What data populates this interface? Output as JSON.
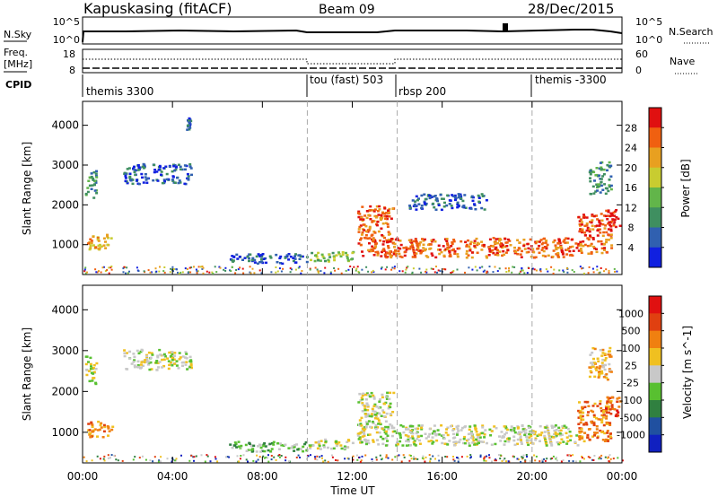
{
  "header": {
    "station": "Kapuskasing (fitACF)",
    "beam": "Beam 09",
    "date": "28/Dec/2015"
  },
  "top_panels": {
    "nsky_label": "N.Sky",
    "nsky_ticks": [
      "10^5",
      "10^0"
    ],
    "nsearch_label": "N.Search",
    "nsearch_ticks": [
      "10^5",
      "10^0"
    ],
    "freq_label_1": "Freq.",
    "freq_label_2": "[MHz]",
    "freq_ticks": [
      "18",
      "8"
    ],
    "nave_label": "Nave",
    "nave_ticks": [
      "60",
      "0"
    ],
    "cpid_label": "CPID",
    "cpid_segments": [
      {
        "label": "themis 3300",
        "start_hour": 0
      },
      {
        "label": "tou (fast) 503",
        "start_hour": 10
      },
      {
        "label": "rbsp 200",
        "start_hour": 14
      },
      {
        "label": "themis -3300",
        "start_hour": 20
      }
    ]
  },
  "chart_data": [
    {
      "type": "heatmap",
      "ylabel": "Slant Range [km]",
      "xlabel": "",
      "xlim": [
        0,
        24
      ],
      "ylim": [
        250,
        4600
      ],
      "y_ticks": [
        1000,
        2000,
        3000,
        4000
      ],
      "x_ticks": [
        0,
        4,
        8,
        12,
        16,
        20,
        24
      ],
      "mode_change_hours": [
        10,
        14,
        20
      ],
      "colorbar": {
        "label": "Power [dB]",
        "ticks": [
          "4",
          "8",
          "12",
          "16",
          "20",
          "24",
          "28"
        ],
        "colors": [
          "#1020e0",
          "#3060b0",
          "#3f8f60",
          "#62b54a",
          "#c8cc30",
          "#e8a020",
          "#f06010",
          "#e01010"
        ]
      },
      "regions": [
        {
          "t0": 0.2,
          "t1": 1.3,
          "r0": 900,
          "r1": 1300,
          "level": 5
        },
        {
          "t0": 0.1,
          "t1": 0.6,
          "r0": 2200,
          "r1": 2900,
          "level": 2
        },
        {
          "t0": 1.8,
          "t1": 4.8,
          "r0": 2550,
          "r1": 3050,
          "level": 1
        },
        {
          "t0": 4.6,
          "t1": 4.8,
          "r0": 3900,
          "r1": 4200,
          "level": 1
        },
        {
          "t0": 6.5,
          "t1": 10.0,
          "r0": 550,
          "r1": 800,
          "level": 1
        },
        {
          "t0": 10.0,
          "t1": 12.0,
          "r0": 600,
          "r1": 850,
          "level": 3
        },
        {
          "t0": 12.2,
          "t1": 22.0,
          "r0": 700,
          "r1": 1200,
          "level": 6
        },
        {
          "t0": 12.2,
          "t1": 13.8,
          "r0": 1100,
          "r1": 2000,
          "level": 6
        },
        {
          "t0": 22.0,
          "t1": 23.5,
          "r0": 800,
          "r1": 1800,
          "level": 6
        },
        {
          "t0": 23.2,
          "t1": 23.9,
          "r0": 1400,
          "r1": 1900,
          "level": 7
        },
        {
          "t0": 22.5,
          "t1": 23.5,
          "r0": 2300,
          "r1": 3100,
          "level": 2
        },
        {
          "t0": 14.5,
          "t1": 18.0,
          "r0": 1900,
          "r1": 2300,
          "level": 1
        }
      ]
    },
    {
      "type": "heatmap",
      "ylabel": "Slant Range [km]",
      "xlabel": "Time UT",
      "xlim": [
        0,
        24
      ],
      "ylim": [
        250,
        4600
      ],
      "y_ticks": [
        1000,
        2000,
        3000,
        4000
      ],
      "x_ticks": [
        0,
        4,
        8,
        12,
        16,
        20,
        24
      ],
      "x_tick_labels": [
        "00:00",
        "04:00",
        "08:00",
        "12:00",
        "16:00",
        "20:00",
        "00:00"
      ],
      "mode_change_hours": [
        10,
        14,
        20
      ],
      "colorbar": {
        "label": "Velocity [m s^-1]",
        "ticks": [
          "1000",
          "500",
          "100",
          "25",
          "-25",
          "-100",
          "-500",
          "-1000"
        ],
        "colors": [
          "#1020c0",
          "#2050a0",
          "#308040",
          "#58c030",
          "#c8c8c8",
          "#f0c020",
          "#f08010",
          "#e04010",
          "#e01010"
        ]
      },
      "regions": [
        {
          "t0": 0.2,
          "t1": 1.3,
          "r0": 900,
          "r1": 1300,
          "level": 6
        },
        {
          "t0": 0.1,
          "t1": 0.6,
          "r0": 2200,
          "r1": 2900,
          "level": 4
        },
        {
          "t0": 1.8,
          "t1": 4.8,
          "r0": 2550,
          "r1": 3050,
          "level": 4
        },
        {
          "t0": 6.5,
          "t1": 10.0,
          "r0": 550,
          "r1": 800,
          "level": 3
        },
        {
          "t0": 10.0,
          "t1": 12.0,
          "r0": 600,
          "r1": 850,
          "level": 4
        },
        {
          "t0": 12.2,
          "t1": 22.0,
          "r0": 700,
          "r1": 1200,
          "level": 4
        },
        {
          "t0": 12.2,
          "t1": 13.8,
          "r0": 1100,
          "r1": 2000,
          "level": 4
        },
        {
          "t0": 22.0,
          "t1": 23.5,
          "r0": 800,
          "r1": 1800,
          "level": 6
        },
        {
          "t0": 23.2,
          "t1": 23.9,
          "r0": 1400,
          "r1": 1900,
          "level": 7
        },
        {
          "t0": 22.5,
          "t1": 23.5,
          "r0": 2300,
          "r1": 3100,
          "level": 5
        }
      ]
    }
  ]
}
